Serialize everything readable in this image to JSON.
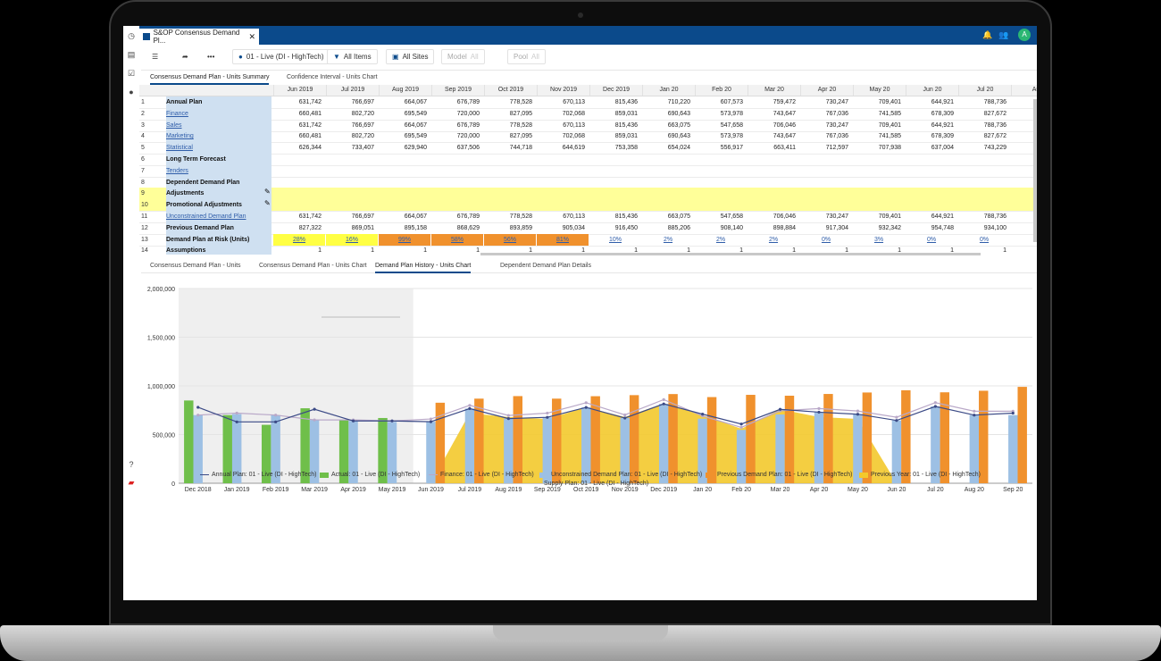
{
  "app": {
    "tab_title": "S&OP Consensus Demand Pl...",
    "avatar_initial": "A"
  },
  "toolbar": {
    "scenario_label": "01 - Live (DI - HighTech)",
    "items_label": "All Items",
    "sites_label": "All Sites",
    "model_label": "Model",
    "model_value": "All",
    "pool_label": "Pool",
    "pool_value": "All"
  },
  "sheet_tabs": [
    "Consensus Demand Plan - Units Summary",
    "Confidence Interval - Units Chart"
  ],
  "grid": {
    "columns": [
      "Jun 2019",
      "Jul 2019",
      "Aug 2019",
      "Sep 2019",
      "Oct 2019",
      "Nov 2019",
      "Dec 2019",
      "Jan 20",
      "Feb 20",
      "Mar 20",
      "Apr 20",
      "May 20",
      "Jun 20",
      "Jul 20",
      "Aug"
    ],
    "rows": [
      {
        "num": "1",
        "label": "Annual Plan",
        "style": "bold",
        "values": [
          "631,742",
          "766,697",
          "664,067",
          "676,789",
          "778,528",
          "670,113",
          "815,436",
          "710,220",
          "607,573",
          "759,472",
          "730,247",
          "709,401",
          "644,921",
          "788,736"
        ]
      },
      {
        "num": "2",
        "label": "Finance",
        "style": "link",
        "values": [
          "660,481",
          "802,720",
          "695,549",
          "720,000",
          "827,095",
          "702,068",
          "859,031",
          "690,643",
          "573,978",
          "743,647",
          "767,036",
          "741,585",
          "678,309",
          "827,672"
        ]
      },
      {
        "num": "3",
        "label": "Sales",
        "style": "link",
        "values": [
          "631,742",
          "766,697",
          "664,067",
          "676,789",
          "778,528",
          "670,113",
          "815,436",
          "663,075",
          "547,658",
          "706,046",
          "730,247",
          "709,401",
          "644,921",
          "788,736"
        ]
      },
      {
        "num": "4",
        "label": "Marketing",
        "style": "link",
        "values": [
          "660,481",
          "802,720",
          "695,549",
          "720,000",
          "827,095",
          "702,068",
          "859,031",
          "690,643",
          "573,978",
          "743,647",
          "767,036",
          "741,585",
          "678,309",
          "827,672"
        ]
      },
      {
        "num": "5",
        "label": "Statistical",
        "style": "link",
        "values": [
          "626,344",
          "733,407",
          "629,940",
          "637,506",
          "744,718",
          "644,619",
          "753,358",
          "654,024",
          "556,917",
          "663,411",
          "712,597",
          "707,938",
          "637,004",
          "743,229"
        ]
      },
      {
        "num": "6",
        "label": "Long Term Forecast",
        "style": "bold",
        "values": []
      },
      {
        "num": "7",
        "label": "Tenders",
        "style": "link",
        "values": []
      },
      {
        "num": "8",
        "label": "Dependent Demand Plan",
        "style": "bold",
        "values": []
      },
      {
        "num": "9",
        "label": "Adjustments",
        "style": "bold",
        "values": [],
        "yellow": true,
        "pencil": true
      },
      {
        "num": "10",
        "label": "Promotional Adjustments",
        "style": "bold",
        "values": [],
        "yellow": true,
        "pencil": true
      },
      {
        "num": "11",
        "label": "Unconstrained Demand Plan",
        "style": "link",
        "values": [
          "631,742",
          "766,697",
          "664,067",
          "676,789",
          "778,528",
          "670,113",
          "815,436",
          "663,075",
          "547,658",
          "706,046",
          "730,247",
          "709,401",
          "644,921",
          "788,736"
        ]
      },
      {
        "num": "12",
        "label": "Previous Demand Plan",
        "style": "bold",
        "values": [
          "827,322",
          "869,051",
          "895,158",
          "868,629",
          "893,859",
          "905,034",
          "916,450",
          "885,206",
          "908,140",
          "898,884",
          "917,304",
          "932,342",
          "954,748",
          "934,100"
        ]
      },
      {
        "num": "13",
        "label": "Demand Plan at Risk (Units)",
        "style": "bold",
        "values": [
          "28%",
          "16%",
          "99%",
          "58%",
          "56%",
          "81%",
          "10%",
          "2%",
          "2%",
          "2%",
          "0%",
          "3%",
          "0%",
          "0%"
        ],
        "risk": true
      },
      {
        "num": "14",
        "label": "Assumptions",
        "style": "bold",
        "values": [
          "1",
          "1",
          "1",
          "1",
          "1",
          "1",
          "1",
          "1",
          "1",
          "1",
          "1",
          "1",
          "1",
          "1"
        ]
      }
    ]
  },
  "chart_tabs": [
    "Consensus Demand Plan - Units",
    "Consensus Demand Plan - Units Chart",
    "Demand Plan History - Units Chart",
    "Dependent Demand Plan Details"
  ],
  "colors": {
    "green": "#6fbf4a",
    "blue": "#9dc0e4",
    "orange": "#f0912d",
    "yellow": "#f3c92c",
    "line": "#3b4a86",
    "risk_yellow": "#ffff44",
    "risk_orange": "#f0912d"
  },
  "chart_data": {
    "type": "bar",
    "categories": [
      "Dec 2018",
      "Jan 2019",
      "Feb 2019",
      "Mar 2019",
      "Apr 2019",
      "May 2019",
      "Jun 2019",
      "Jul 2019",
      "Aug 2019",
      "Sep 2019",
      "Oct 2019",
      "Nov 2019",
      "Dec 2019",
      "Jan 20",
      "Feb 20",
      "Mar 20",
      "Apr 20",
      "May 20",
      "Jun 20",
      "Jul 20",
      "Aug 20",
      "Sep 20"
    ],
    "yticks": [
      "0",
      "500,000",
      "1,000,000",
      "1,500,000",
      "2,000,000"
    ],
    "ylim": [
      0,
      2000000
    ],
    "series": [
      {
        "name": "Annual Plan: 01 - Live (DI - HighTech)",
        "kind": "line",
        "values": [
          780000,
          630000,
          630000,
          760000,
          640000,
          640000,
          632000,
          767000,
          664000,
          677000,
          779000,
          670000,
          815000,
          710000,
          608000,
          759000,
          730000,
          709000,
          645000,
          789000,
          700000,
          720000
        ]
      },
      {
        "name": "Actual: 01 - Live (DI - HighTech)",
        "kind": "bar",
        "values": [
          850000,
          700000,
          600000,
          770000,
          650000,
          670000,
          null,
          null,
          null,
          null,
          null,
          null,
          null,
          null,
          null,
          null,
          null,
          null,
          null,
          null,
          null,
          null
        ]
      },
      {
        "name": "Finance: 01 - Live (DI - HighTech)",
        "kind": "line",
        "values": [
          700000,
          720000,
          700000,
          650000,
          650000,
          640000,
          660000,
          800000,
          696000,
          720000,
          827000,
          702000,
          859000,
          691000,
          574000,
          744000,
          767000,
          742000,
          678000,
          828000,
          740000,
          740000
        ]
      },
      {
        "name": "Unconstrained Demand Plan: 01 - Live (DI - HighTech)",
        "kind": "bar",
        "values": [
          700000,
          710000,
          700000,
          650000,
          640000,
          630000,
          632000,
          767000,
          664000,
          677000,
          779000,
          670000,
          815000,
          663000,
          548000,
          706000,
          730000,
          709000,
          645000,
          789000,
          700000,
          700000
        ]
      },
      {
        "name": "Previous Demand Plan: 01 - Live (DI - HighTech)",
        "kind": "bar",
        "values": [
          null,
          null,
          null,
          null,
          null,
          null,
          827000,
          869000,
          895000,
          869000,
          894000,
          905000,
          916000,
          885000,
          908000,
          899000,
          917000,
          932000,
          955000,
          934000,
          950000,
          990000
        ]
      },
      {
        "name": "Previous Year: 01 - Live (DI - HighTech)",
        "kind": "area",
        "values": [
          null,
          null,
          null,
          null,
          null,
          null,
          0,
          720000,
          680000,
          660000,
          780000,
          680000,
          820000,
          700000,
          560000,
          760000,
          680000,
          660000,
          0,
          null,
          null,
          null
        ]
      },
      {
        "name": "Supply Plan: 01 - Live (DI - HighTech)",
        "kind": "line",
        "values": [
          null,
          null,
          null,
          null,
          null,
          null,
          null,
          null,
          null,
          null,
          null,
          null,
          null,
          null,
          null,
          null,
          null,
          null,
          null,
          null,
          null,
          null
        ]
      }
    ]
  }
}
